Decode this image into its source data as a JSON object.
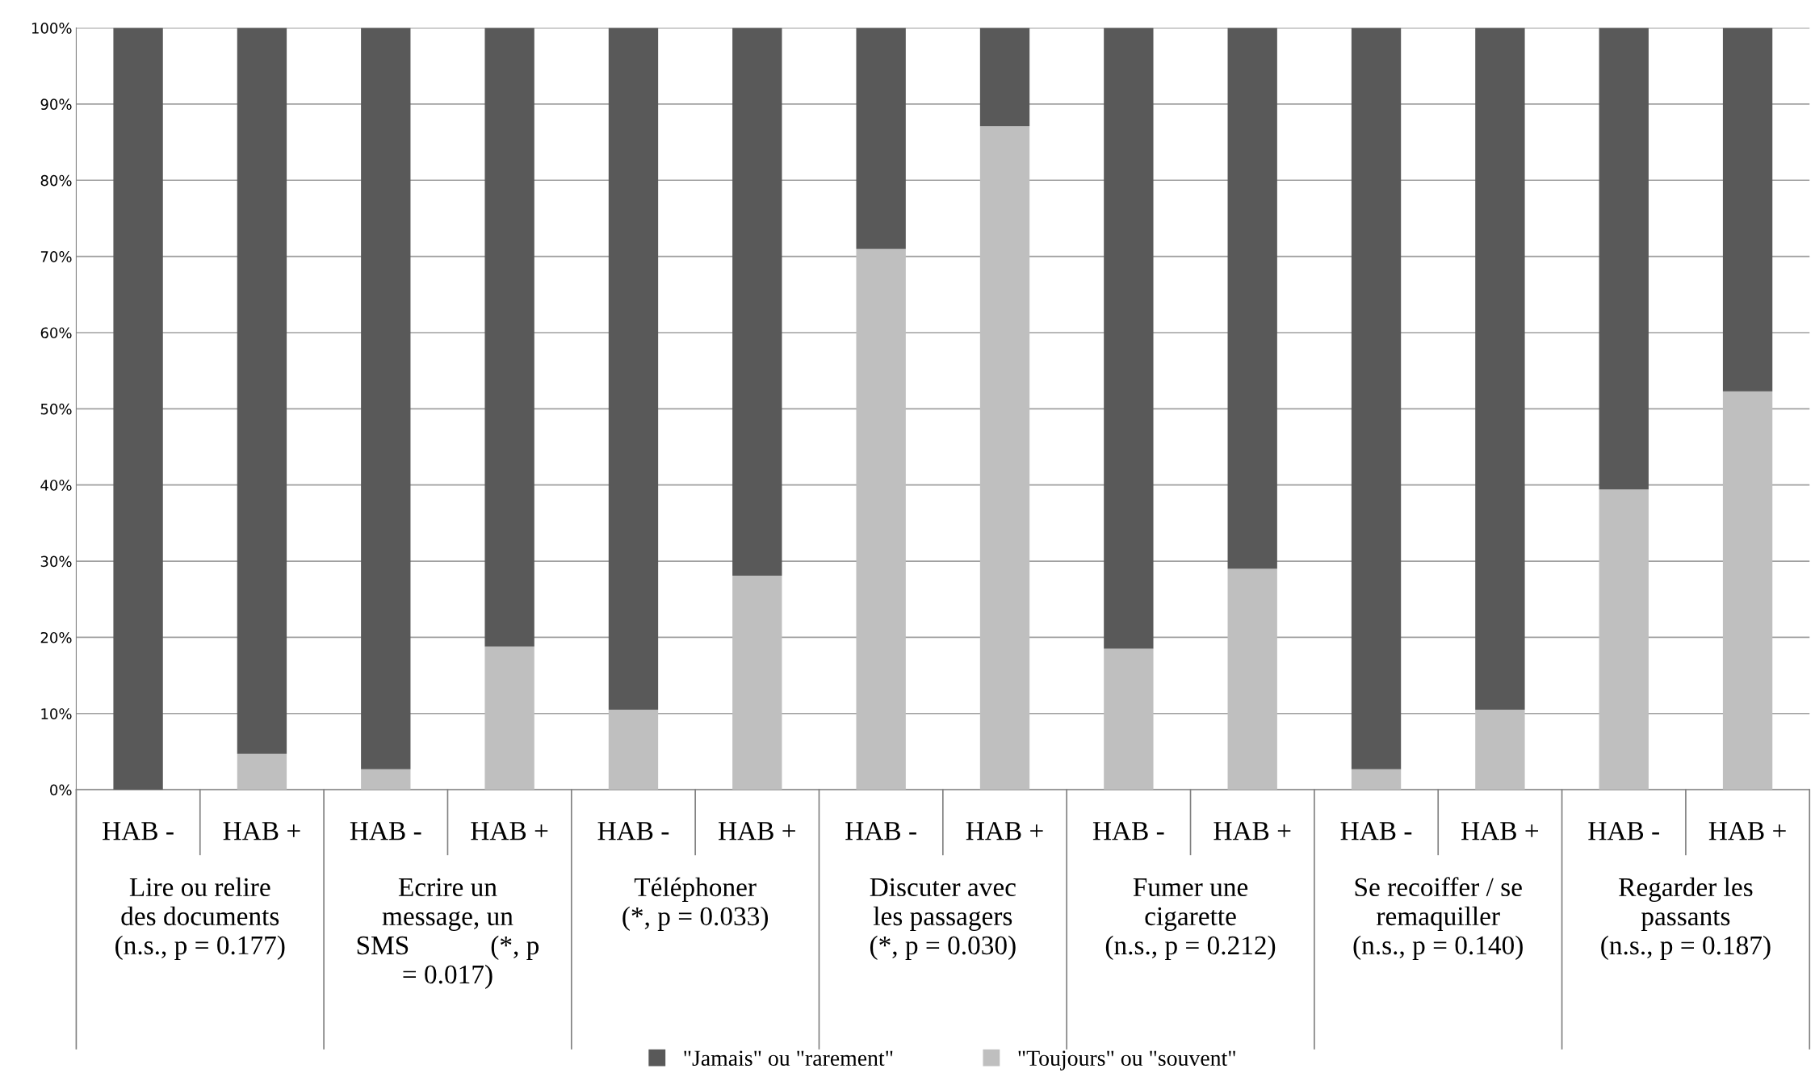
{
  "chart_data": {
    "type": "bar",
    "stacked": true,
    "categories": [
      "HAB -",
      "HAB +",
      "HAB -",
      "HAB +",
      "HAB -",
      "HAB +",
      "HAB -",
      "HAB +",
      "HAB -",
      "HAB +",
      "HAB -",
      "HAB +",
      "HAB -",
      "HAB +"
    ],
    "series": [
      {
        "name": "\"Toujours\" ou \"souvent\"",
        "color": "#bfbfbf",
        "values": [
          0,
          4.7,
          2.7,
          18.8,
          10.5,
          28.1,
          71.0,
          87.1,
          18.5,
          29.0,
          2.7,
          10.5,
          39.4,
          52.3
        ]
      },
      {
        "name": "\"Jamais\" ou \"rarement\"",
        "color": "#595959",
        "values": [
          100,
          95.3,
          97.3,
          81.2,
          89.5,
          71.9,
          29.0,
          12.9,
          81.5,
          71.0,
          97.3,
          89.5,
          60.6,
          47.7
        ]
      }
    ],
    "annotations": [
      "Lire ou relire\ndes documents\n(n.s., p = 0.177)",
      "Ecrire un\nmessage, un\nSMS            (*, p\n= 0.017)",
      "Téléphoner\n(*, p = 0.033)",
      "Discuter avec\nles passagers\n(*, p = 0.030)",
      "Fumer une\ncigarette\n(n.s., p = 0.212)",
      "Se recoiffer / se\nremaquiller\n(n.s., p = 0.140)",
      "Regarder les\npassants\n(n.s., p = 0.187)"
    ],
    "ylim": [
      0,
      100
    ],
    "yticks": [
      {
        "value": 0,
        "label": "0%"
      },
      {
        "value": 10,
        "label": "10%"
      },
      {
        "value": 20,
        "label": "20%"
      },
      {
        "value": 30,
        "label": "30%"
      },
      {
        "value": 40,
        "label": "40%"
      },
      {
        "value": 50,
        "label": "50%"
      },
      {
        "value": 60,
        "label": "60%"
      },
      {
        "value": 70,
        "label": "70%"
      },
      {
        "value": 80,
        "label": "80%"
      },
      {
        "value": 90,
        "label": "90%"
      },
      {
        "value": 100,
        "label": "100%"
      }
    ],
    "grid": "y",
    "legend": "bottom"
  }
}
